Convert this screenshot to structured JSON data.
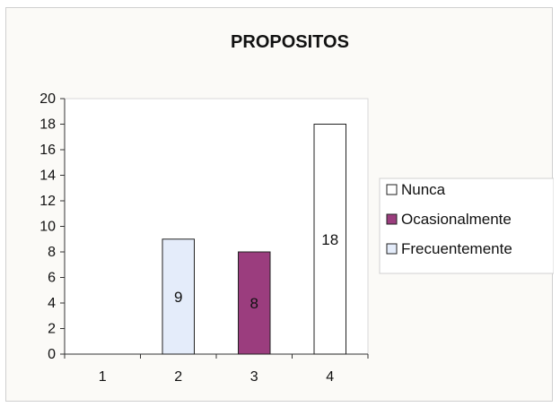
{
  "chart_data": {
    "type": "bar",
    "title": "PROPOSITOS",
    "xlabel": "",
    "ylabel": "",
    "categories": [
      "1",
      "2",
      "3",
      "4"
    ],
    "ylim": [
      0,
      20
    ],
    "yticks": [
      0,
      2,
      4,
      6,
      8,
      10,
      12,
      14,
      16,
      18,
      20
    ],
    "grid": false,
    "legend_position": "right",
    "series": [
      {
        "name": "Nunca",
        "color": "#ffffff",
        "values": [
          null,
          null,
          null,
          18
        ]
      },
      {
        "name": "Ocasionalmente",
        "color": "#9b3d7e",
        "values": [
          null,
          null,
          8,
          null
        ]
      },
      {
        "name": "Frecuentemente",
        "color": "#e4ecfa",
        "values": [
          null,
          9,
          null,
          null
        ]
      }
    ],
    "data_labels": [
      "",
      "9",
      "8",
      "18"
    ],
    "plot_background": "#ffffff",
    "frame_background": "#fbfaf7"
  }
}
